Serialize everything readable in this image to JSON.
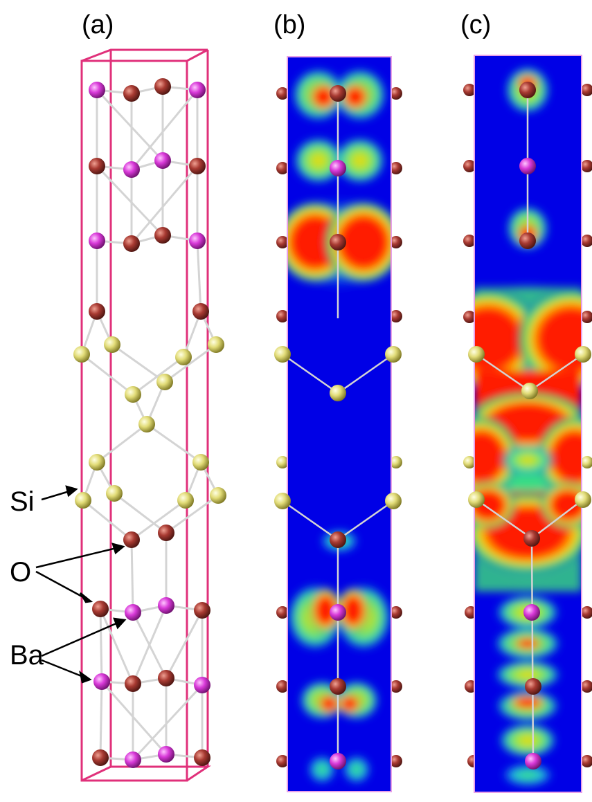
{
  "panels": [
    {
      "id": "a",
      "label": "(a)"
    },
    {
      "id": "b",
      "label": "(b)"
    },
    {
      "id": "c",
      "label": "(c)"
    }
  ],
  "species": [
    {
      "id": "si",
      "label": "Si"
    },
    {
      "id": "o",
      "label": "O"
    },
    {
      "id": "ba",
      "label": "Ba"
    }
  ],
  "colors": {
    "frame": "#e0307a",
    "bond": "#d4d4d4",
    "o_atom": "#a83a32",
    "ba_atom": "#d93ad9",
    "si_atom": "#e2dc78",
    "density_low": "#0000e6",
    "density_mid": "#3ce07a",
    "density_high": "#ff1a00"
  }
}
